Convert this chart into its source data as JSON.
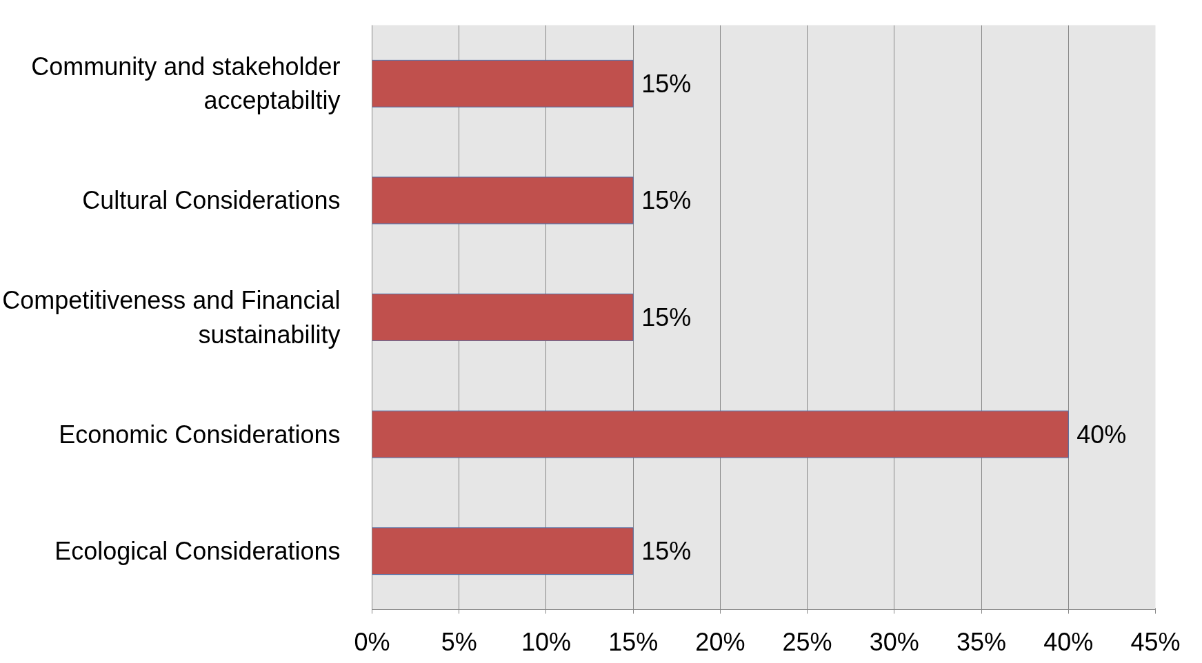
{
  "chart_data": {
    "type": "bar",
    "orientation": "horizontal",
    "categories": [
      "Community and stakeholder acceptabiltiy",
      "Cultural Considerations",
      "Competitiveness and Financial sustainability",
      "Economic Considerations",
      "Ecological Considerations"
    ],
    "values": [
      15,
      15,
      15,
      40,
      15
    ],
    "value_labels": [
      "15%",
      "15%",
      "15%",
      "40%",
      "15%"
    ],
    "color": "#c0504d",
    "xlim": [
      0,
      45
    ],
    "xticks": [
      {
        "value": 0,
        "label": "0%"
      },
      {
        "value": 5,
        "label": "5%"
      },
      {
        "value": 10,
        "label": "10%"
      },
      {
        "value": 15,
        "label": "15%"
      },
      {
        "value": 20,
        "label": "20%"
      },
      {
        "value": 25,
        "label": "25%"
      },
      {
        "value": 30,
        "label": "30%"
      },
      {
        "value": 35,
        "label": "35%"
      },
      {
        "value": 40,
        "label": "40%"
      },
      {
        "value": 45,
        "label": "45%"
      }
    ],
    "grid": "x"
  }
}
